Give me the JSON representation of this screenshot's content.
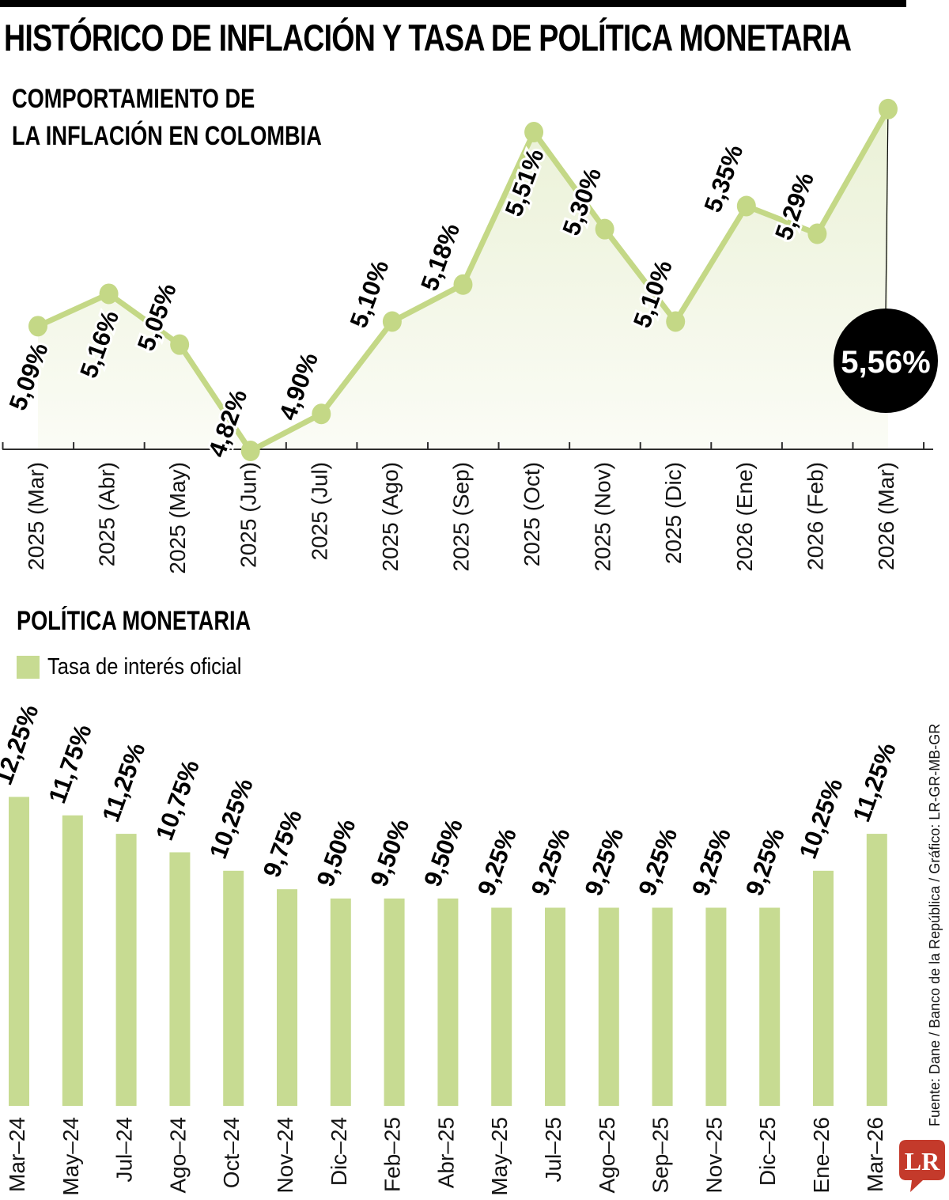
{
  "page": {
    "title": "HISTÓRICO DE INFLACIÓN Y TASA DE POLÍTICA MONETARIA"
  },
  "inflation": {
    "heading_line1": "COMPORTAMIENTO DE",
    "heading_line2": "LA INFLACIÓN EN COLOMBIA",
    "highlight_value": "5,56%"
  },
  "policy": {
    "heading": "POLÍTICA MONETARIA",
    "legend_label": "Tasa de interés oficial"
  },
  "credits": {
    "source": "Fuente: Dane / Banco de la República / Gráfico: LR-GR-MB-GR",
    "logo_text": "LR"
  },
  "colors": {
    "line_green": "#c4d886",
    "bar_green": "#c7db92",
    "area_top": "#eaf1d6",
    "area_bottom": "#fbfcf6",
    "bubble_black": "#000000",
    "logo_red": "#c43a2b"
  },
  "chart_data": [
    {
      "type": "line",
      "title": "COMPORTAMIENTO DE LA INFLACIÓN EN COLOMBIA",
      "categories": [
        "2025 (Mar)",
        "2025 (Abr)",
        "2025 (May)",
        "2025 (Jun)",
        "2025 (Jul)",
        "2025 (Ago)",
        "2025 (Sep)",
        "2025 (Oct)",
        "2025 (Nov)",
        "2025 (Dic)",
        "2026 (Ene)",
        "2026 (Feb)",
        "2026 (Mar)"
      ],
      "values": [
        5.09,
        5.16,
        5.05,
        4.82,
        4.9,
        5.1,
        5.18,
        5.51,
        5.3,
        5.1,
        5.35,
        5.29,
        5.56
      ],
      "labels": [
        "5,09%",
        "5,16%",
        "5,05%",
        "4,82%",
        "4,90%",
        "5,10%",
        "5,18%",
        "5,51%",
        "5,30%",
        "5,10%",
        "5,35%",
        "5,29%",
        "5,56%"
      ],
      "unit": "%",
      "ylim": [
        4.82,
        5.6
      ],
      "grid": false,
      "highlight": {
        "index": 12,
        "label": "5,56%"
      }
    },
    {
      "type": "bar",
      "title": "POLÍTICA MONETARIA — Tasa de interés oficial",
      "categories": [
        "Mar–24",
        "May–24",
        "Jul–24",
        "Ago–24",
        "Oct–24",
        "Nov–24",
        "Dic–24",
        "Feb–25",
        "Abr–25",
        "May–25",
        "Jul–25",
        "Ago–25",
        "Sep–25",
        "Nov–25",
        "Dic–25",
        "Ene–26",
        "Mar–26"
      ],
      "values": [
        12.25,
        11.75,
        11.25,
        10.75,
        10.25,
        9.75,
        9.5,
        9.5,
        9.5,
        9.25,
        9.25,
        9.25,
        9.25,
        9.25,
        9.25,
        10.25,
        11.25
      ],
      "labels": [
        "12,25%",
        "11,75%",
        "11,25%",
        "10,75%",
        "10,25%",
        "9,75%",
        "9,50%",
        "9,50%",
        "9,50%",
        "9,25%",
        "9,25%",
        "9,25%",
        "9,25%",
        "9,25%",
        "9,25%",
        "10,25%",
        "11,25%"
      ],
      "unit": "%",
      "grid": false,
      "legend": [
        "Tasa de interés oficial"
      ]
    }
  ]
}
